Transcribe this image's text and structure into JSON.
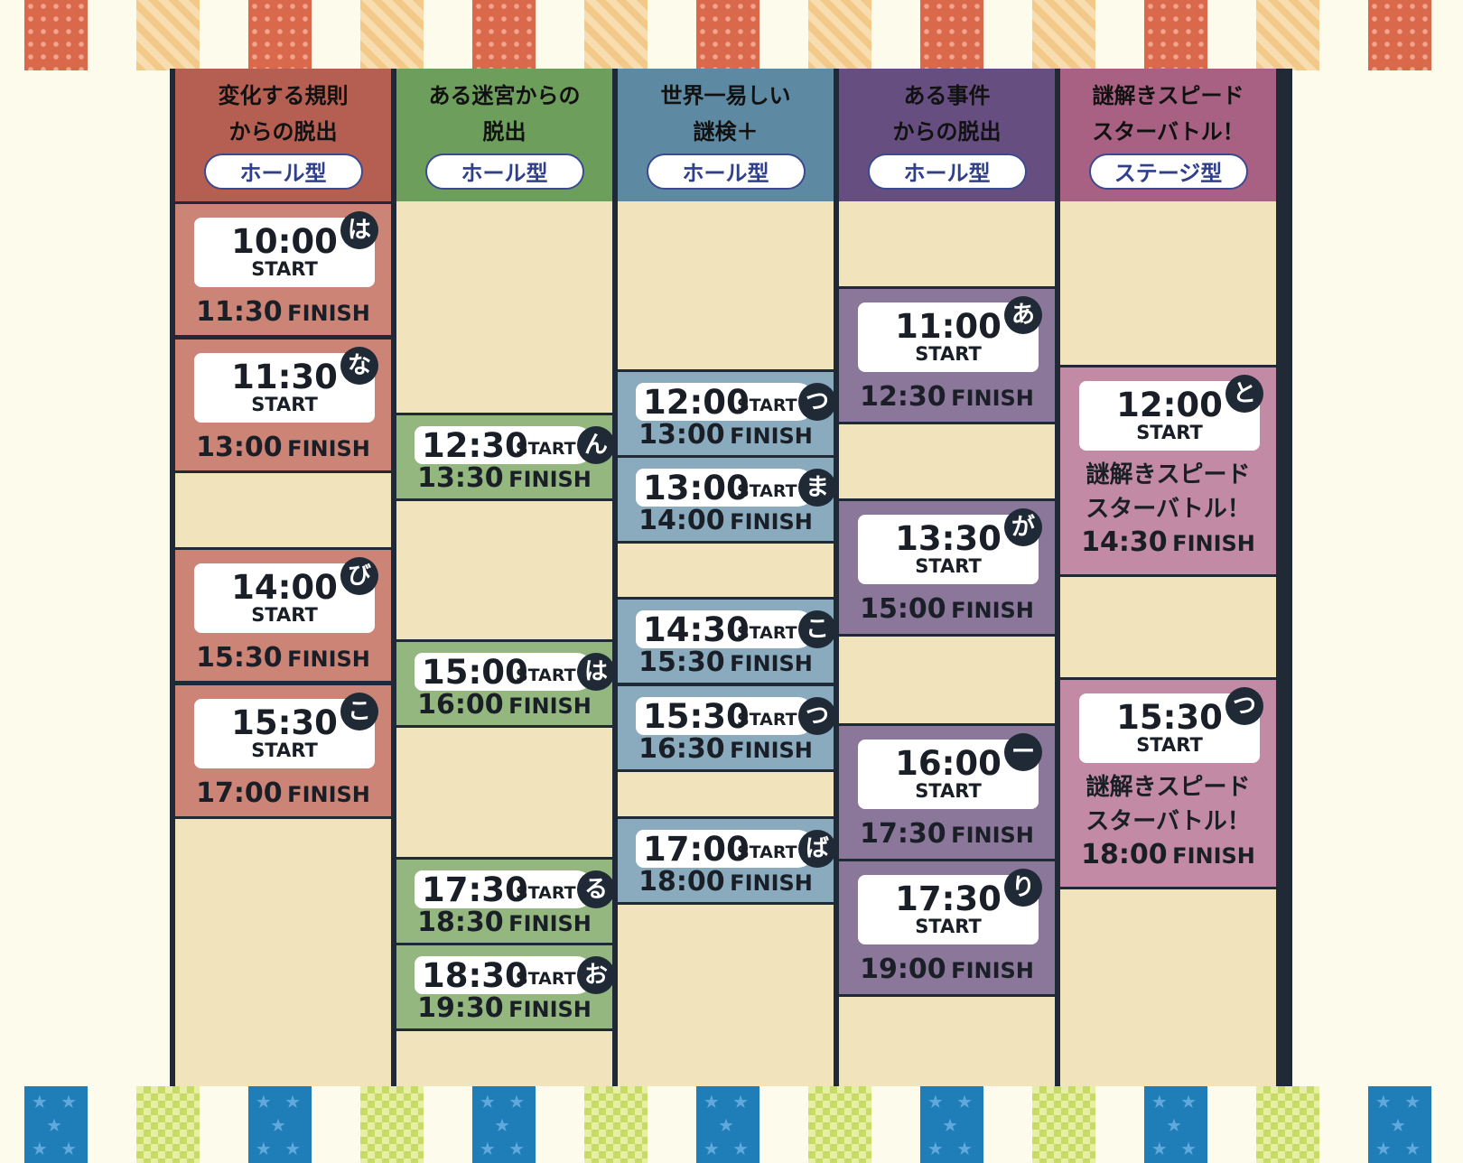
{
  "colors": {
    "table_frame": "#1f2a36",
    "empty_cell": "#f1e3bb",
    "col_red": "#b55f52",
    "slot_red": "#cc8476",
    "col_green": "#6e9e5c",
    "slot_green": "#94b77f",
    "col_teal": "#5d89a3",
    "slot_teal": "#8aabbd",
    "col_purple": "#664f80",
    "slot_purple": "#8b7799",
    "col_pink": "#a86183",
    "slot_pink": "#c28aa4"
  },
  "columns": [
    {
      "title": "変化する規則\nからの脱出",
      "type_label": "ホール型",
      "style": "card",
      "sessions": [
        {
          "start": "10:00",
          "start_label": "START",
          "finish": "11:30",
          "finish_label": "FINISH",
          "badge": "は"
        },
        {
          "start": "11:30",
          "start_label": "START",
          "finish": "13:00",
          "finish_label": "FINISH",
          "badge": "な"
        },
        {
          "start": "14:00",
          "start_label": "START",
          "finish": "15:30",
          "finish_label": "FINISH",
          "badge": "び"
        },
        {
          "start": "15:30",
          "start_label": "START",
          "finish": "17:00",
          "finish_label": "FINISH",
          "badge": "こ"
        }
      ]
    },
    {
      "title": "ある迷宮からの\n脱出",
      "type_label": "ホール型",
      "style": "pill",
      "sessions": [
        {
          "start": "12:30",
          "start_label": "START",
          "finish": "13:30",
          "finish_label": "FINISH",
          "badge": "ん"
        },
        {
          "start": "15:00",
          "start_label": "START",
          "finish": "16:00",
          "finish_label": "FINISH",
          "badge": "は"
        },
        {
          "start": "17:30",
          "start_label": "START",
          "finish": "18:30",
          "finish_label": "FINISH",
          "badge": "る"
        },
        {
          "start": "18:30",
          "start_label": "START",
          "finish": "19:30",
          "finish_label": "FINISH",
          "badge": "お"
        }
      ]
    },
    {
      "title": "世界一易しい\n謎検＋",
      "type_label": "ホール型",
      "style": "pill",
      "sessions": [
        {
          "start": "12:00",
          "start_label": "START",
          "finish": "13:00",
          "finish_label": "FINISH",
          "badge": "つ"
        },
        {
          "start": "13:00",
          "start_label": "START",
          "finish": "14:00",
          "finish_label": "FINISH",
          "badge": "ま"
        },
        {
          "start": "14:30",
          "start_label": "START",
          "finish": "15:30",
          "finish_label": "FINISH",
          "badge": "こ"
        },
        {
          "start": "15:30",
          "start_label": "START",
          "finish": "16:30",
          "finish_label": "FINISH",
          "badge": "つ"
        },
        {
          "start": "17:00",
          "start_label": "START",
          "finish": "18:00",
          "finish_label": "FINISH",
          "badge": "ば"
        }
      ]
    },
    {
      "title": "ある事件\nからの脱出",
      "type_label": "ホール型",
      "style": "card",
      "sessions": [
        {
          "start": "11:00",
          "start_label": "START",
          "finish": "12:30",
          "finish_label": "FINISH",
          "badge": "あ"
        },
        {
          "start": "13:30",
          "start_label": "START",
          "finish": "15:00",
          "finish_label": "FINISH",
          "badge": "が"
        },
        {
          "start": "16:00",
          "start_label": "START",
          "finish": "17:30",
          "finish_label": "FINISH",
          "badge": "ー"
        },
        {
          "start": "17:30",
          "start_label": "START",
          "finish": "19:00",
          "finish_label": "FINISH",
          "badge": "り"
        }
      ]
    },
    {
      "title": "謎解きスピード\nスターバトル！",
      "type_label": "ステージ型",
      "style": "card",
      "sessions": [
        {
          "start": "12:00",
          "start_label": "START",
          "note": "謎解きスピード\nスターバトル！",
          "finish": "14:30",
          "finish_label": "FINISH",
          "badge": "と"
        },
        {
          "start": "15:30",
          "start_label": "START",
          "note": "謎解きスピード\nスターバトル！",
          "finish": "18:00",
          "finish_label": "FINISH",
          "badge": "つ"
        }
      ]
    }
  ]
}
